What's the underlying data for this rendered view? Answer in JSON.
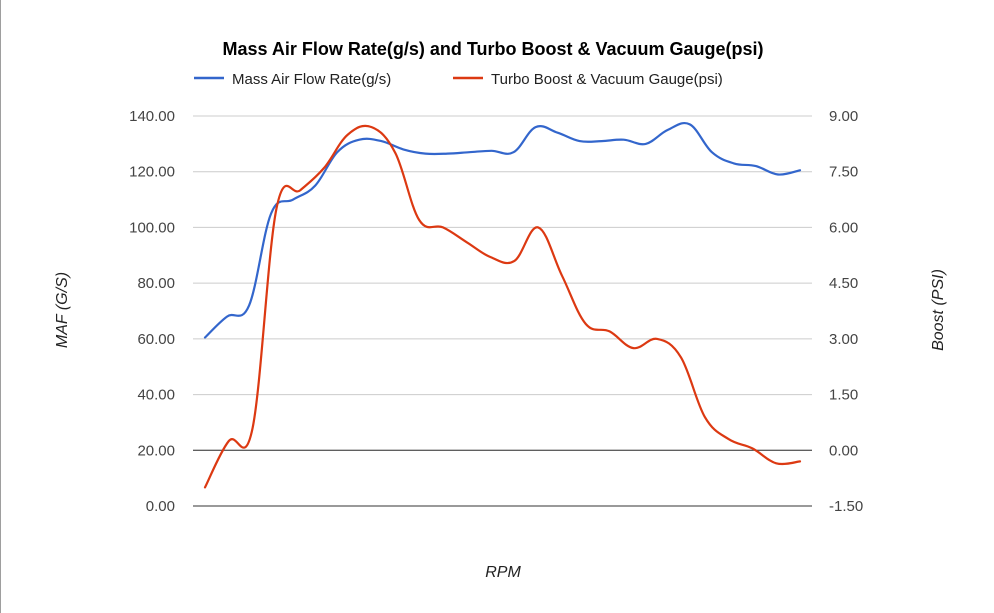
{
  "chart_data": {
    "type": "line",
    "title": "Mass Air Flow Rate(g/s) and Turbo Boost & Vacuum Gauge(psi)",
    "xlabel": "RPM",
    "ylabel_left": "MAF (G/S)",
    "ylabel_right": "Boost (PSI)",
    "left_axis": {
      "min": 0,
      "max": 140,
      "ticks": [
        "0.00",
        "20.00",
        "40.00",
        "60.00",
        "80.00",
        "100.00",
        "120.00",
        "140.00"
      ]
    },
    "right_axis": {
      "min": -1.5,
      "max": 9,
      "ticks": [
        "-1.50",
        "0.00",
        "1.50",
        "3.00",
        "4.50",
        "6.00",
        "7.50",
        "9.00"
      ]
    },
    "grid": true,
    "legend_position": "top",
    "series": [
      {
        "name": "Mass Air Flow Rate(g/s)",
        "axis": "left",
        "color": "#3366cc",
        "values": [
          60.5,
          68,
          72,
          105,
          110,
          115,
          127,
          131.5,
          131,
          128,
          126.5,
          126.5,
          127,
          127.5,
          127,
          136,
          134,
          131,
          131,
          131.5,
          130,
          135,
          137,
          127,
          123,
          122,
          119,
          120.5
        ]
      },
      {
        "name": "Turbo Boost & Vacuum Gauge(psi)",
        "axis": "right",
        "color": "#dc3912",
        "values": [
          -1.0,
          0.25,
          0.6,
          6.5,
          7.0,
          7.6,
          8.5,
          8.7,
          8.0,
          6.2,
          6.0,
          5.6,
          5.2,
          5.1,
          6.0,
          4.7,
          3.4,
          3.2,
          2.75,
          3.0,
          2.5,
          0.9,
          0.3,
          0.05,
          -0.35,
          -0.3
        ]
      }
    ]
  }
}
